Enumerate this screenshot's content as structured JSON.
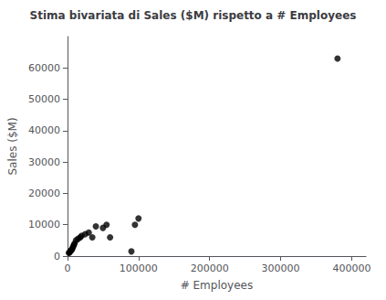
{
  "chart_data": {
    "type": "scatter",
    "title": "Stima bivariata di Sales ($M) rispetto a # Employees",
    "xlabel": "# Employees",
    "ylabel": "Sales ($M)",
    "x": [
      2000,
      3000,
      4000,
      5000,
      6000,
      7000,
      8000,
      9000,
      10000,
      12000,
      15000,
      18000,
      20000,
      25000,
      30000,
      35000,
      40000,
      50000,
      55000,
      60000,
      90000,
      95000,
      100000,
      380000
    ],
    "values": [
      1000,
      1200,
      1500,
      1800,
      2000,
      2500,
      3000,
      3500,
      4000,
      5000,
      5500,
      6000,
      6500,
      7000,
      7500,
      6000,
      9500,
      9000,
      10000,
      6000,
      1500,
      10000,
      12000,
      63000
    ],
    "color": "#000000",
    "xlim": [
      0,
      420000
    ],
    "ylim": [
      0,
      70000
    ],
    "xticks": [
      0,
      100000,
      200000,
      300000,
      400000
    ],
    "yticks": [
      0,
      10000,
      20000,
      30000,
      40000,
      50000,
      60000
    ],
    "grid": false
  }
}
